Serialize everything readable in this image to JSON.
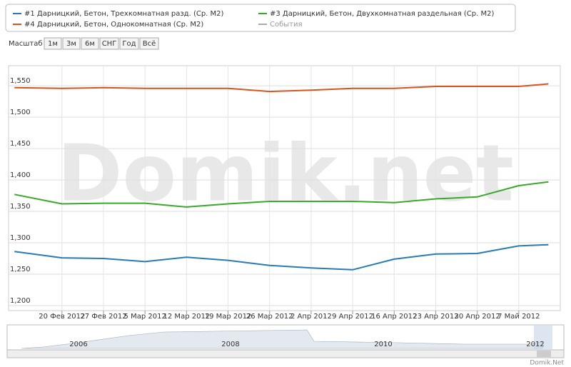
{
  "chart_data": {
    "type": "line",
    "range_selector": {
      "label": "Масштаб",
      "buttons": [
        "1м",
        "3м",
        "6м",
        "СНГ",
        "Год",
        "Всё"
      ]
    },
    "watermark": "Domik.net",
    "credit": "Domik.Net",
    "events_legend": "События",
    "navigator_labels": [
      "2006",
      "2008",
      "2010",
      "2012"
    ],
    "x": [
      "2012-02-12",
      "2012-02-20",
      "2012-02-27",
      "2012-03-05",
      "2012-03-12",
      "2012-03-19",
      "2012-03-26",
      "2012-04-02",
      "2012-04-09",
      "2012-04-16",
      "2012-04-23",
      "2012-04-30",
      "2012-05-07",
      "2012-05-12"
    ],
    "xlim": [
      "2012-02-11",
      "2012-05-14"
    ],
    "xticks": [
      {
        "value": "2012-02-20",
        "label": "20 Фев 2012"
      },
      {
        "value": "2012-02-27",
        "label": "27 Фев 2012"
      },
      {
        "value": "2012-03-05",
        "label": "5 Мар 2012"
      },
      {
        "value": "2012-03-12",
        "label": "12 Мар 2012"
      },
      {
        "value": "2012-03-19",
        "label": "19 Мар 2012"
      },
      {
        "value": "2012-03-26",
        "label": "26 Мар 2012"
      },
      {
        "value": "2012-04-02",
        "label": "2 Апр 2012"
      },
      {
        "value": "2012-04-09",
        "label": "9 Апр 2012"
      },
      {
        "value": "2012-04-16",
        "label": "16 Апр 2012"
      },
      {
        "value": "2012-04-23",
        "label": "23 Апр 2012"
      },
      {
        "value": "2012-04-30",
        "label": "30 Апр 2012"
      },
      {
        "value": "2012-05-07",
        "label": "7 Май 2012"
      }
    ],
    "ylim": [
      1192,
      1582
    ],
    "yticks": [
      {
        "value": 1200,
        "label": "1,200"
      },
      {
        "value": 1250,
        "label": "1,250"
      },
      {
        "value": 1300,
        "label": "1,300"
      },
      {
        "value": 1350,
        "label": "1,350"
      },
      {
        "value": 1400,
        "label": "1,400"
      },
      {
        "value": 1450,
        "label": "1,450"
      },
      {
        "value": 1500,
        "label": "1,500"
      },
      {
        "value": 1550,
        "label": "1,550"
      }
    ],
    "grid": true,
    "series": [
      {
        "name": "#1 Дарницкий, Бетон, Трехкомнатная разд. (Ср. М2)",
        "color": "#2a7bb5",
        "values": [
          1286,
          1276,
          1275,
          1270,
          1277,
          1272,
          1264,
          1260,
          1257,
          1274,
          1282,
          1283,
          1295,
          1297
        ]
      },
      {
        "name": "#3 Дарницкий, Бетон, Двухкомнатная раздельная (Ср. М2)",
        "color": "#3aa82a",
        "values": [
          1377,
          1362,
          1363,
          1363,
          1357,
          1362,
          1366,
          1366,
          1366,
          1364,
          1370,
          1373,
          1391,
          1397
        ]
      },
      {
        "name": "#4 Дарницкий, Бетон, Однокомнатная (Ср. М2)",
        "color": "#d6551f",
        "values": [
          1547,
          1546,
          1547,
          1546,
          1546,
          1546,
          1541,
          1543,
          1546,
          1546,
          1549,
          1549,
          1549,
          1553
        ]
      }
    ]
  }
}
